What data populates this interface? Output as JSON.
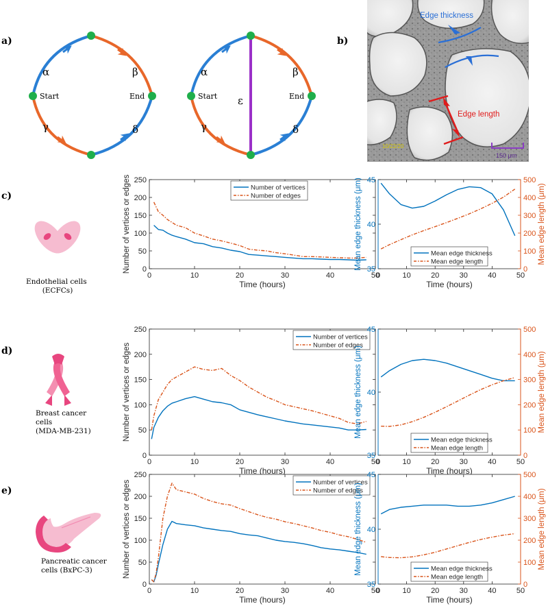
{
  "panel_labels": {
    "a": "a)",
    "b": "b)",
    "c": "c)",
    "d": "d)",
    "e": "e)"
  },
  "graph": {
    "alpha": "α",
    "beta": "β",
    "gamma": "γ",
    "delta": "δ",
    "epsilon": "ε",
    "start": "Start",
    "end": "End"
  },
  "colors": {
    "blue": "#0072BD",
    "orange": "#D95319",
    "purple": "#9b30c8",
    "node_green": "#1fae4b",
    "pink_light": "#f6bcd0",
    "pink_dark": "#e8467f"
  },
  "micrograph": {
    "edge_thickness": "Edge thickness",
    "edge_length": "Edge length",
    "scale_bar": "150 μm",
    "watermark": "10/22/20"
  },
  "rows": [
    {
      "label": "Endothelial cells (ECFCs)",
      "label_lines": [
        "Endothelial cells",
        "(ECFCs)"
      ],
      "icon": "endothelial-cells-icon"
    },
    {
      "label": "Breast cancer cells (MDA-MB-231)",
      "label_lines": [
        "Breast cancer",
        "cells",
        "(MDA-MB-231)"
      ],
      "icon": "pink-ribbon-icon"
    },
    {
      "label": "Pancreatic cancer cells (BxPC-3)",
      "label_lines": [
        "Pancreatic cancer",
        "cells  (BxPC-3)"
      ],
      "icon": "pancreas-icon"
    }
  ],
  "chart_data": [
    {
      "type": "line",
      "id": "c-left",
      "xlabel": "Time (hours)",
      "ylabel": "Number of vertices or edges",
      "xlim": [
        0,
        50
      ],
      "ylim": [
        0,
        250
      ],
      "xticks": [
        0,
        10,
        20,
        30,
        40,
        50
      ],
      "yticks": [
        0,
        50,
        100,
        150,
        200,
        250
      ],
      "legend_position": "top-center",
      "x": [
        1,
        2,
        3,
        4,
        5,
        6,
        8,
        10,
        12,
        14,
        16,
        18,
        20,
        22,
        24,
        26,
        28,
        30,
        32,
        34,
        36,
        38,
        40,
        42,
        44,
        46,
        48
      ],
      "series": [
        {
          "name": "Number of vertices",
          "style": "solid",
          "values": [
            122,
            110,
            108,
            100,
            94,
            90,
            83,
            73,
            70,
            62,
            58,
            52,
            48,
            40,
            38,
            36,
            34,
            32,
            30,
            28,
            28,
            27,
            26,
            26,
            25,
            24,
            25
          ]
        },
        {
          "name": "Number of edges",
          "style": "dashdot",
          "values": [
            187,
            160,
            150,
            138,
            130,
            122,
            115,
            100,
            92,
            83,
            78,
            72,
            65,
            55,
            52,
            50,
            45,
            42,
            38,
            34,
            34,
            33,
            32,
            31,
            30,
            30,
            32
          ]
        }
      ]
    },
    {
      "type": "line",
      "id": "c-right",
      "dual_axis": true,
      "xlabel": "Time (hours)",
      "ylabel": "Mean edge thickness (μm)",
      "y2label": "Mean edge length (μm)",
      "xlim": [
        0,
        50
      ],
      "ylim": [
        35,
        45
      ],
      "y2lim": [
        0,
        500
      ],
      "xticks": [
        0,
        10,
        20,
        30,
        40,
        50
      ],
      "yticks": [
        35,
        40,
        45
      ],
      "y2ticks": [
        0,
        100,
        200,
        300,
        400,
        500
      ],
      "legend_position": "bottom-center",
      "x": [
        1,
        4,
        8,
        12,
        16,
        20,
        24,
        28,
        32,
        36,
        40,
        44,
        48
      ],
      "series": [
        {
          "name": "Mean edge thickness",
          "axis": "left",
          "style": "solid",
          "values": [
            44.6,
            43.4,
            42.2,
            41.8,
            42.0,
            42.6,
            43.3,
            43.9,
            44.2,
            44.1,
            43.4,
            41.6,
            38.7
          ]
        },
        {
          "name": "Mean edge length",
          "axis": "right",
          "style": "dashdot",
          "values": [
            111,
            135,
            163,
            190,
            214,
            236,
            259,
            283,
            308,
            336,
            367,
            402,
            447
          ]
        }
      ]
    },
    {
      "type": "line",
      "id": "d-left",
      "xlabel": "Time (hours)",
      "ylabel": "Number of vertices or edges",
      "xlim": [
        0,
        50
      ],
      "ylim": [
        0,
        250
      ],
      "xticks": [
        0,
        10,
        20,
        30,
        40,
        50
      ],
      "yticks": [
        0,
        50,
        100,
        150,
        200,
        250
      ],
      "legend_position": "top-right",
      "x": [
        0.5,
        1,
        2,
        3,
        4,
        5,
        6,
        8,
        10,
        12,
        14,
        16,
        18,
        20,
        22,
        24,
        26,
        28,
        30,
        32,
        34,
        36,
        38,
        40,
        42,
        44,
        46,
        48
      ],
      "series": [
        {
          "name": "Number of vertices",
          "style": "solid",
          "values": [
            32,
            55,
            75,
            88,
            97,
            103,
            106,
            112,
            116,
            111,
            106,
            104,
            100,
            90,
            85,
            80,
            76,
            72,
            68,
            65,
            62,
            60,
            58,
            56,
            54,
            50,
            50,
            51
          ]
        },
        {
          "name": "Number of edges",
          "style": "dashdot",
          "values": [
            50,
            78,
            110,
            125,
            140,
            150,
            155,
            165,
            175,
            170,
            168,
            172,
            158,
            148,
            135,
            125,
            115,
            108,
            100,
            96,
            92,
            88,
            83,
            78,
            73,
            65,
            62,
            67
          ]
        }
      ]
    },
    {
      "type": "line",
      "id": "d-right",
      "dual_axis": true,
      "xlabel": "Time (hours)",
      "ylabel": "Mean edge thickness (μm)",
      "y2label": "Mean edge length (μm)",
      "xlim": [
        0,
        50
      ],
      "ylim": [
        35,
        45
      ],
      "y2lim": [
        0,
        500
      ],
      "xticks": [
        0,
        10,
        20,
        30,
        40,
        50
      ],
      "yticks": [
        35,
        40,
        45
      ],
      "y2ticks": [
        0,
        100,
        200,
        300,
        400,
        500
      ],
      "legend_position": "bottom-center",
      "x": [
        1,
        4,
        8,
        12,
        16,
        20,
        24,
        28,
        32,
        36,
        40,
        44,
        48
      ],
      "series": [
        {
          "name": "Mean edge thickness",
          "axis": "left",
          "style": "solid",
          "values": [
            41.2,
            41.7,
            42.2,
            42.5,
            42.6,
            42.5,
            42.3,
            42.0,
            41.7,
            41.4,
            41.1,
            40.9,
            40.9
          ]
        },
        {
          "name": "Mean edge length",
          "axis": "right",
          "style": "dashdot",
          "values": [
            115,
            114,
            120,
            133,
            150,
            170,
            192,
            215,
            238,
            260,
            279,
            295,
            308
          ]
        }
      ]
    },
    {
      "type": "line",
      "id": "e-left",
      "xlabel": "Time (hours)",
      "ylabel": "Number of vertices or edges",
      "xlim": [
        0,
        50
      ],
      "ylim": [
        0,
        250
      ],
      "xticks": [
        0,
        10,
        20,
        30,
        40,
        50
      ],
      "yticks": [
        0,
        50,
        100,
        150,
        200,
        250
      ],
      "legend_position": "top-right",
      "x": [
        0.5,
        1,
        1.5,
        2,
        3,
        4,
        5,
        6,
        8,
        10,
        12,
        14,
        16,
        18,
        20,
        22,
        24,
        26,
        28,
        30,
        32,
        34,
        36,
        38,
        40,
        42,
        44,
        46,
        48
      ],
      "series": [
        {
          "name": "Number of vertices",
          "style": "solid",
          "values": [
            10,
            5,
            20,
            45,
            90,
            125,
            143,
            138,
            135,
            133,
            128,
            125,
            122,
            120,
            115,
            112,
            110,
            105,
            100,
            97,
            95,
            92,
            88,
            83,
            80,
            78,
            75,
            72,
            68
          ]
        },
        {
          "name": "Number of edges",
          "style": "dashdot",
          "values": [
            10,
            5,
            25,
            60,
            150,
            200,
            230,
            215,
            210,
            205,
            195,
            188,
            183,
            180,
            172,
            165,
            158,
            152,
            148,
            142,
            138,
            133,
            128,
            122,
            118,
            112,
            108,
            102,
            95
          ]
        }
      ]
    },
    {
      "type": "line",
      "id": "e-right",
      "dual_axis": true,
      "xlabel": "Time (hours)",
      "ylabel": "Mean edge thickness (μm)",
      "y2label": "Mean edge length (μm)",
      "xlim": [
        0,
        50
      ],
      "ylim": [
        35,
        45
      ],
      "y2lim": [
        0,
        500
      ],
      "xticks": [
        0,
        10,
        20,
        30,
        40,
        50
      ],
      "yticks": [
        35,
        40,
        45
      ],
      "y2ticks": [
        0,
        100,
        200,
        300,
        400,
        500
      ],
      "legend_position": "bottom-center",
      "x": [
        1,
        4,
        8,
        12,
        16,
        20,
        24,
        28,
        32,
        36,
        40,
        44,
        48
      ],
      "series": [
        {
          "name": "Mean edge thickness",
          "axis": "left",
          "style": "solid",
          "values": [
            41.4,
            41.8,
            42.0,
            42.1,
            42.2,
            42.2,
            42.2,
            42.1,
            42.1,
            42.2,
            42.4,
            42.7,
            43.0
          ]
        },
        {
          "name": "Mean edge length",
          "axis": "right",
          "style": "dashdot",
          "values": [
            125,
            121,
            120,
            124,
            133,
            145,
            160,
            175,
            190,
            203,
            214,
            223,
            230
          ]
        }
      ]
    }
  ]
}
